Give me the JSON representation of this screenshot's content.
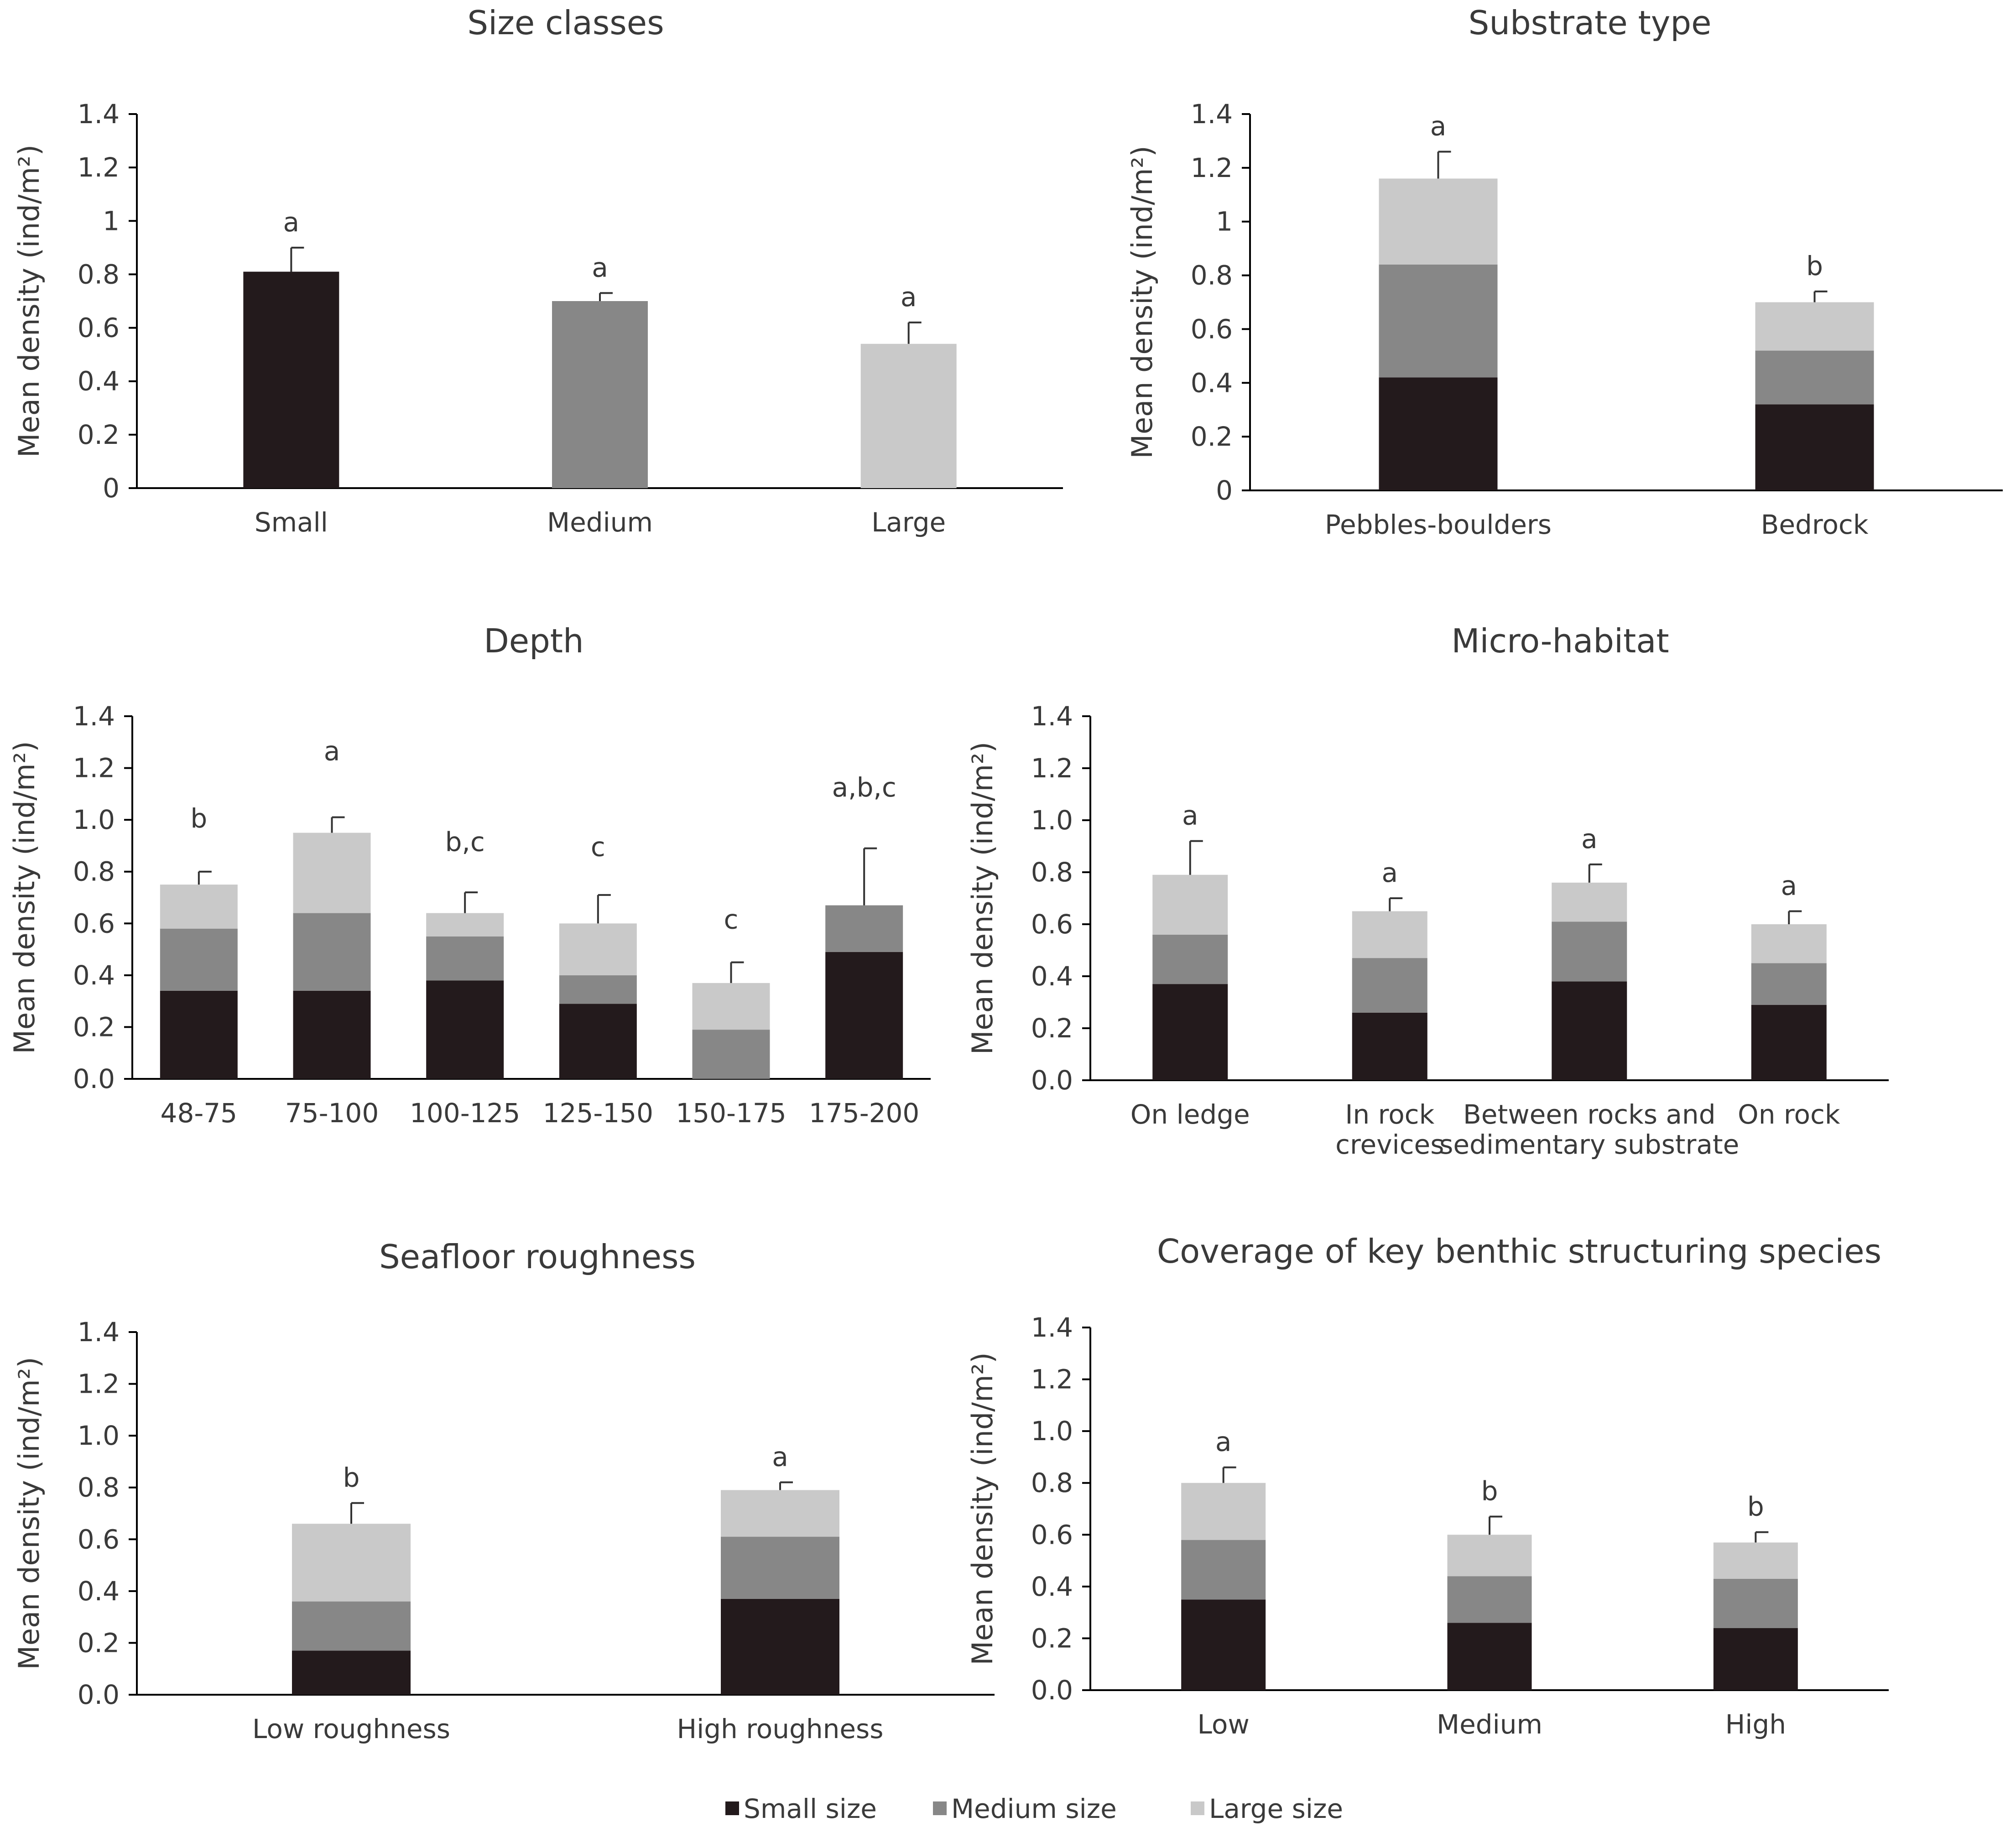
{
  "colors": {
    "small": "#231a1c",
    "medium": "#878787",
    "large": "#c9c9c9",
    "axis": "#000000",
    "text": "#3a3a3a"
  },
  "legend": {
    "items": [
      {
        "key": "small",
        "label": "Small size"
      },
      {
        "key": "medium",
        "label": "Medium size"
      },
      {
        "key": "large",
        "label": "Large size"
      }
    ]
  },
  "chart_data": [
    {
      "id": "size-classes",
      "type": "bar",
      "title": "Size classes",
      "ylabel": "Mean density (ind/m²)",
      "ylim": [
        0,
        1.4
      ],
      "yticks": [
        "0",
        "0.2",
        "0.4",
        "0.6",
        "0.8",
        "1",
        "1.2",
        "1.4"
      ],
      "categories": [
        [
          "Small"
        ],
        [
          "Medium"
        ],
        [
          "Large"
        ]
      ],
      "values": [
        0.81,
        0.7,
        0.54
      ],
      "bar_colors": [
        "small",
        "medium",
        "large"
      ],
      "errors": [
        0.09,
        0.03,
        0.08
      ],
      "letters": [
        "a",
        "a",
        "a"
      ]
    },
    {
      "id": "substrate-type",
      "type": "bar",
      "stacked": true,
      "title": "Substrate type",
      "ylabel": "Mean density (ind/m²)",
      "ylim": [
        0,
        1.4
      ],
      "yticks": [
        "0",
        "0.2",
        "0.4",
        "0.6",
        "0.8",
        "1",
        "1.2",
        "1.4"
      ],
      "categories": [
        [
          "Pebbles-boulders"
        ],
        [
          "Bedrock"
        ]
      ],
      "series": [
        {
          "name": "Small size",
          "key": "small",
          "values": [
            0.42,
            0.32
          ]
        },
        {
          "name": "Medium size",
          "key": "medium",
          "values": [
            0.42,
            0.2
          ]
        },
        {
          "name": "Large size",
          "key": "large",
          "values": [
            0.32,
            0.18
          ]
        }
      ],
      "totals": [
        1.16,
        0.7
      ],
      "errors": [
        0.1,
        0.04
      ],
      "letters": [
        "a",
        "b"
      ]
    },
    {
      "id": "depth",
      "type": "bar",
      "stacked": true,
      "title": "Depth",
      "ylabel": "Mean density (ind/m²)",
      "ylim": [
        0,
        1.4
      ],
      "yticks": [
        "0.0",
        "0.2",
        "0.4",
        "0.6",
        "0.8",
        "1.0",
        "1.2",
        "1.4"
      ],
      "categories": [
        [
          "48-75"
        ],
        [
          "75-100"
        ],
        [
          "100-125"
        ],
        [
          "125-150"
        ],
        [
          "150-175"
        ],
        [
          "175-200"
        ]
      ],
      "series": [
        {
          "name": "Small size",
          "key": "small",
          "values": [
            0.34,
            0.34,
            0.38,
            0.29,
            0.0,
            0.49
          ]
        },
        {
          "name": "Medium size",
          "key": "medium",
          "values": [
            0.24,
            0.3,
            0.17,
            0.11,
            0.19,
            0.18
          ]
        },
        {
          "name": "Large size",
          "key": "large",
          "values": [
            0.17,
            0.31,
            0.09,
            0.2,
            0.18,
            0.0
          ]
        }
      ],
      "totals": [
        0.75,
        0.95,
        0.64,
        0.6,
        0.37,
        0.67
      ],
      "errors": [
        0.05,
        0.06,
        0.08,
        0.11,
        0.08,
        0.22
      ],
      "letters": [
        "b",
        "a",
        "b,c",
        "c",
        "c",
        "a,b,c"
      ],
      "letter_values": [
        0.97,
        1.23,
        0.88,
        0.86,
        0.58,
        1.09
      ]
    },
    {
      "id": "micro-habitat",
      "type": "bar",
      "stacked": true,
      "title": "Micro-habitat",
      "ylabel": "Mean density (ind/m²)",
      "ylim": [
        0,
        1.4
      ],
      "yticks": [
        "0.0",
        "0.2",
        "0.4",
        "0.6",
        "0.8",
        "1.0",
        "1.2",
        "1.4"
      ],
      "categories": [
        [
          "On ledge"
        ],
        [
          "In rock",
          "crevices"
        ],
        [
          "Between rocks and",
          "sedimentary substrate"
        ],
        [
          "On rock"
        ]
      ],
      "series": [
        {
          "name": "Small size",
          "key": "small",
          "values": [
            0.37,
            0.26,
            0.38,
            0.29
          ]
        },
        {
          "name": "Medium size",
          "key": "medium",
          "values": [
            0.19,
            0.21,
            0.23,
            0.16
          ]
        },
        {
          "name": "Large size",
          "key": "large",
          "values": [
            0.23,
            0.18,
            0.15,
            0.15
          ]
        }
      ],
      "totals": [
        0.79,
        0.65,
        0.76,
        0.6
      ],
      "errors": [
        0.13,
        0.05,
        0.07,
        0.05
      ],
      "letters": [
        "a",
        "a",
        "a",
        "a"
      ]
    },
    {
      "id": "seafloor-roughness",
      "type": "bar",
      "stacked": true,
      "title": "Seafloor roughness",
      "ylabel": "Mean density (ind/m²)",
      "ylim": [
        0,
        1.4
      ],
      "yticks": [
        "0.0",
        "0.2",
        "0.4",
        "0.6",
        "0.8",
        "1.0",
        "1.2",
        "1.4"
      ],
      "categories": [
        [
          "Low roughness"
        ],
        [
          "High roughness"
        ]
      ],
      "series": [
        {
          "name": "Small size",
          "key": "small",
          "values": [
            0.17,
            0.37
          ]
        },
        {
          "name": "Medium size",
          "key": "medium",
          "values": [
            0.19,
            0.24
          ]
        },
        {
          "name": "Large size",
          "key": "large",
          "values": [
            0.3,
            0.18
          ]
        }
      ],
      "totals": [
        0.66,
        0.79
      ],
      "errors": [
        0.08,
        0.03
      ],
      "letters": [
        "b",
        "a"
      ]
    },
    {
      "id": "coverage",
      "type": "bar",
      "stacked": true,
      "title": "Coverage of key benthic structuring species",
      "ylabel": "Mean density (ind/m²)",
      "ylim": [
        0,
        1.4
      ],
      "yticks": [
        "0.0",
        "0.2",
        "0.4",
        "0.6",
        "0.8",
        "1.0",
        "1.2",
        "1.4"
      ],
      "categories": [
        [
          "Low"
        ],
        [
          "Medium"
        ],
        [
          "High"
        ]
      ],
      "series": [
        {
          "name": "Small size",
          "key": "small",
          "values": [
            0.35,
            0.26,
            0.24
          ]
        },
        {
          "name": "Medium size",
          "key": "medium",
          "values": [
            0.23,
            0.18,
            0.19
          ]
        },
        {
          "name": "Large size",
          "key": "large",
          "values": [
            0.22,
            0.16,
            0.14
          ]
        }
      ],
      "totals": [
        0.8,
        0.6,
        0.57
      ],
      "errors": [
        0.06,
        0.07,
        0.04
      ],
      "letters": [
        "a",
        "b",
        "b"
      ]
    }
  ]
}
